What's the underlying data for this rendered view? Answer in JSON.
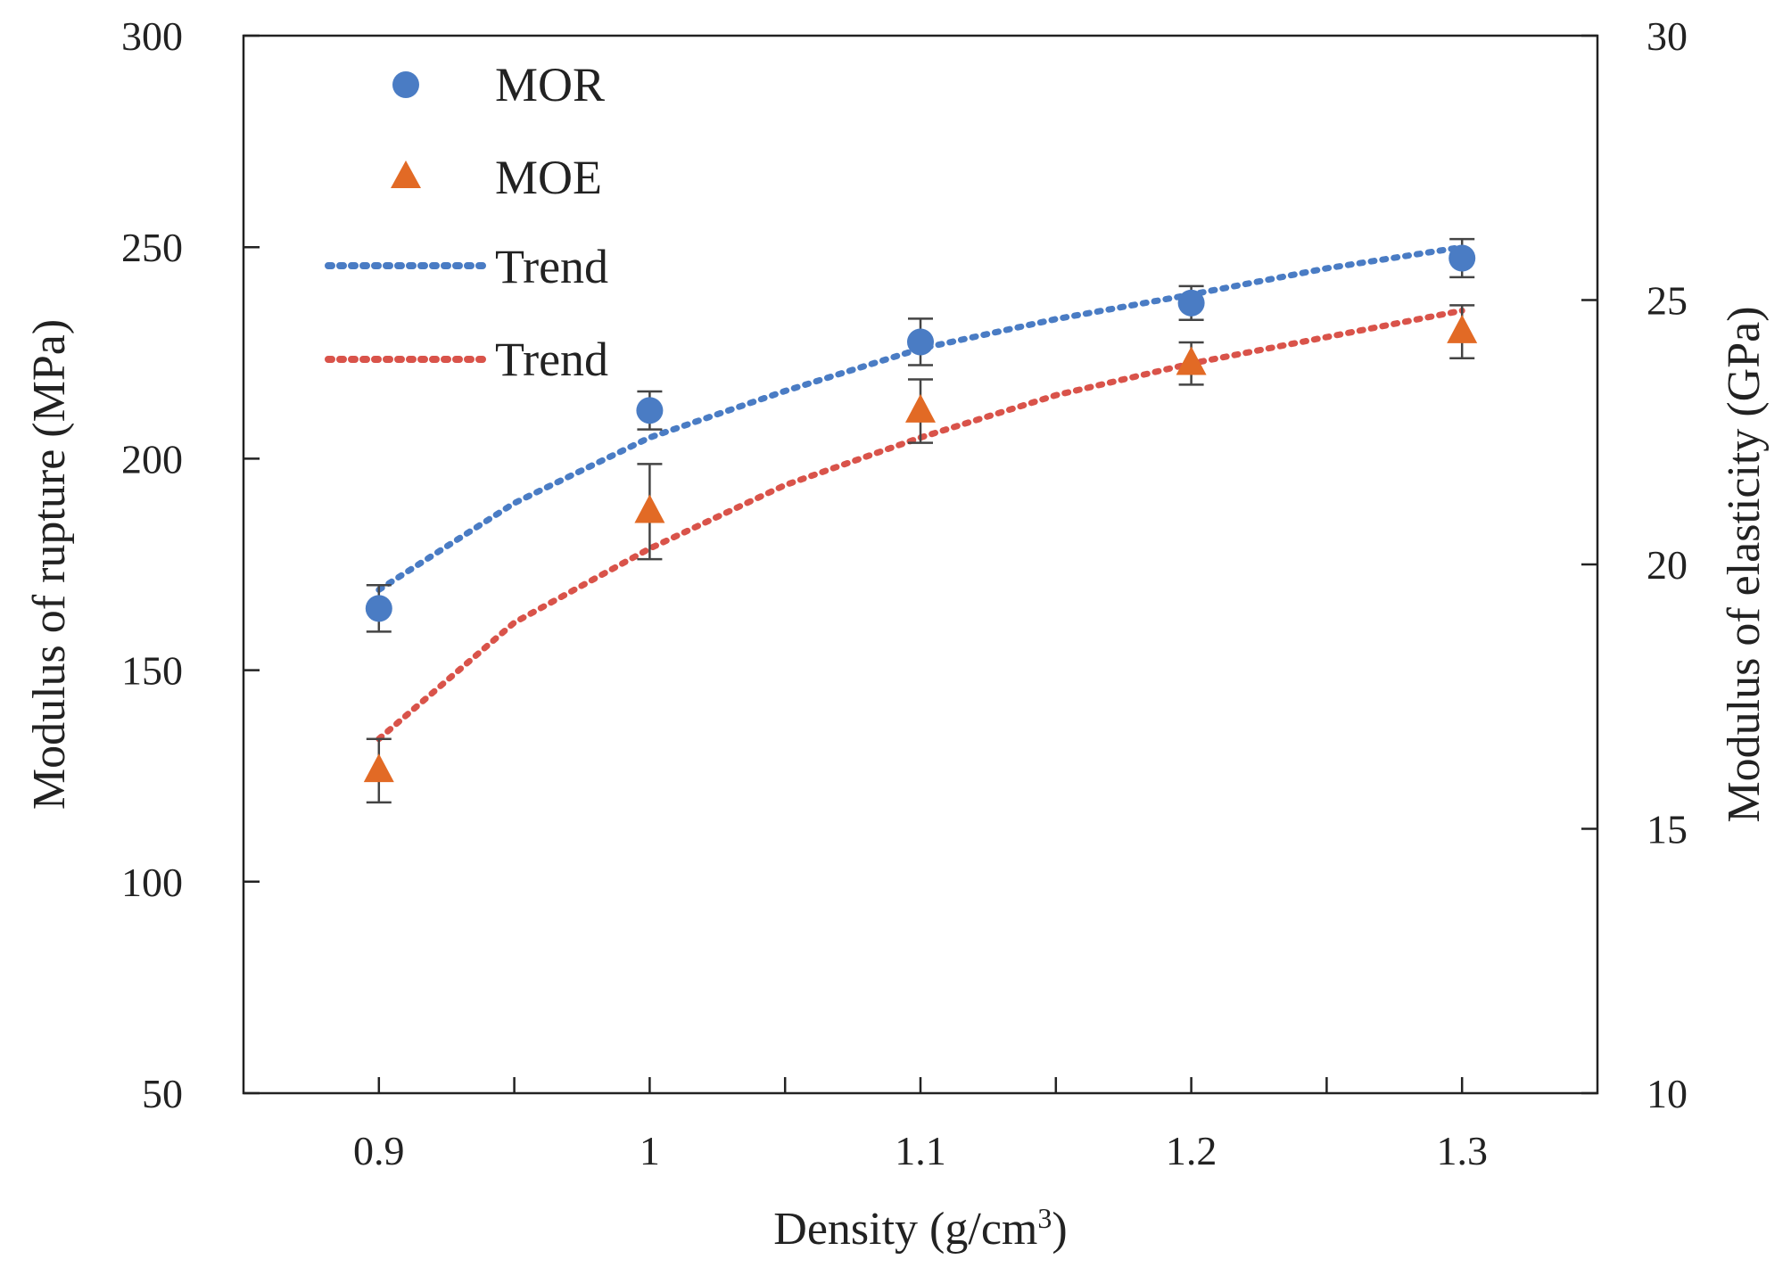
{
  "chart_data": {
    "type": "scatter",
    "title": "",
    "xlabel": "Density (g/cm",
    "xlabel_sup": "3",
    "xlabel_close": ")",
    "ylabel_left": "Modulus of rupture (MPa)",
    "ylabel_right": "Modulus of elasticity (GPa)",
    "xlim": [
      0.85,
      1.35
    ],
    "ylim_left": [
      50,
      300
    ],
    "ylim_right": [
      10,
      30
    ],
    "x_ticks": [
      0.9,
      1.0,
      1.1,
      1.2,
      1.3
    ],
    "x_tick_labels": [
      "0.9",
      "1",
      "1.1",
      "1.2",
      "1.3"
    ],
    "x_minor_ticks": [
      0.95,
      1.05,
      1.15,
      1.25
    ],
    "y_left_ticks": [
      50,
      100,
      150,
      200,
      250,
      300
    ],
    "y_left_tick_labels": [
      "50",
      "100",
      "150",
      "200",
      "250",
      "300"
    ],
    "y_right_ticks": [
      10,
      15,
      20,
      25,
      30
    ],
    "y_right_tick_labels": [
      "10",
      "15",
      "20",
      "25",
      "30"
    ],
    "series": [
      {
        "name": "MOR",
        "axis": "left",
        "marker": "circle",
        "color": "#4a7cc4",
        "x": [
          0.9,
          1.0,
          1.1,
          1.2,
          1.3
        ],
        "y": [
          164.6,
          211.4,
          227.6,
          236.8,
          247.4
        ],
        "err": [
          5.5,
          4.5,
          5.5,
          4.0,
          4.5
        ]
      },
      {
        "name": "MOE",
        "axis": "right",
        "marker": "triangle",
        "color": "#e26a25",
        "x": [
          0.9,
          1.0,
          1.1,
          1.2,
          1.3
        ],
        "y": [
          16.1,
          21.0,
          22.9,
          23.8,
          24.4
        ],
        "err": [
          0.6,
          0.9,
          0.6,
          0.4,
          0.5
        ]
      }
    ],
    "trends": [
      {
        "name": "Trend",
        "of": "MOR",
        "axis": "left",
        "color": "#4a7cc4",
        "x": [
          0.9,
          0.95,
          1.0,
          1.05,
          1.1,
          1.15,
          1.2,
          1.25,
          1.3
        ],
        "y": [
          169.0,
          189.5,
          205.0,
          216.0,
          226.0,
          233.0,
          238.8,
          245.0,
          250.0
        ]
      },
      {
        "name": "Trend",
        "of": "MOE",
        "axis": "right",
        "color": "#d9534a",
        "x": [
          0.9,
          0.95,
          1.0,
          1.05,
          1.1,
          1.15,
          1.2,
          1.25,
          1.3
        ],
        "y": [
          16.7,
          18.9,
          20.3,
          21.5,
          22.4,
          23.2,
          23.8,
          24.3,
          24.8
        ]
      }
    ],
    "legend": {
      "position": "top-left",
      "entries": [
        "MOR",
        "MOE",
        "Trend",
        "Trend"
      ]
    }
  }
}
